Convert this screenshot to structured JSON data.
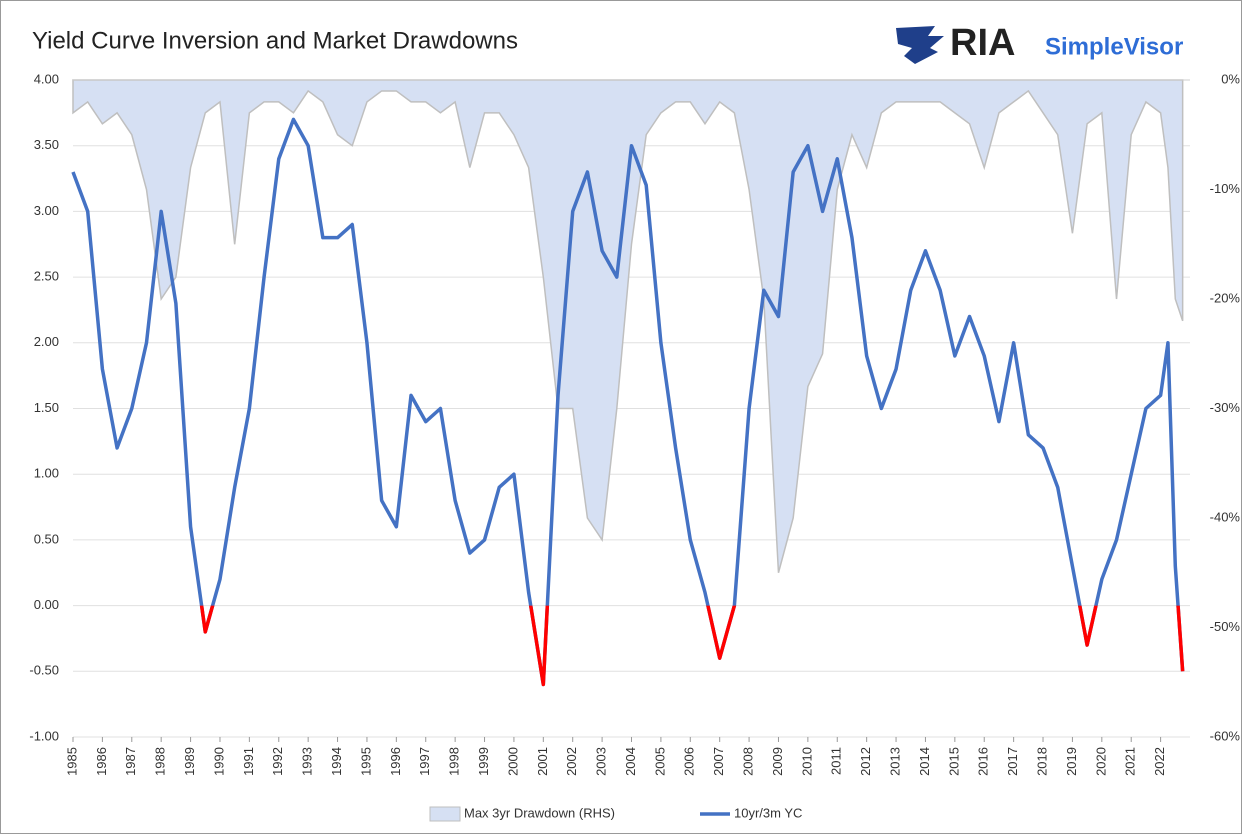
{
  "chart_data": {
    "type": "line",
    "title": "Yield Curve Inversion and Market Drawdowns",
    "logo": [
      "RIA",
      "SimpleVisor"
    ],
    "x": [
      1985.0,
      1985.5,
      1986.0,
      1986.5,
      1987.0,
      1987.5,
      1988.0,
      1988.5,
      1989.0,
      1989.5,
      1990.0,
      1990.5,
      1991.0,
      1991.5,
      1992.0,
      1992.5,
      1993.0,
      1993.5,
      1994.0,
      1994.5,
      1995.0,
      1995.5,
      1996.0,
      1996.5,
      1997.0,
      1997.5,
      1998.0,
      1998.5,
      1999.0,
      1999.5,
      2000.0,
      2000.5,
      2001.0,
      2001.5,
      2002.0,
      2002.5,
      2003.0,
      2003.5,
      2004.0,
      2004.5,
      2005.0,
      2005.5,
      2006.0,
      2006.5,
      2007.0,
      2007.5,
      2008.0,
      2008.5,
      2009.0,
      2009.5,
      2010.0,
      2010.5,
      2011.0,
      2011.5,
      2012.0,
      2012.5,
      2013.0,
      2013.5,
      2014.0,
      2014.5,
      2015.0,
      2015.5,
      2016.0,
      2016.5,
      2017.0,
      2017.5,
      2018.0,
      2018.5,
      2019.0,
      2019.5,
      2020.0,
      2020.5,
      2021.0,
      2021.5,
      2022.0,
      2022.25,
      2022.5,
      2022.75
    ],
    "series": [
      {
        "name": "Max 3yr Drawdown (RHS)",
        "axis": "y2",
        "kind": "area",
        "color": "#d6e0f3",
        "edge_color": "#bfbfbf",
        "values": [
          -3,
          -2,
          -4,
          -3,
          -5,
          -10,
          -20,
          -18,
          -8,
          -3,
          -2,
          -15,
          -3,
          -2,
          -2,
          -3,
          -1,
          -2,
          -5,
          -6,
          -2,
          -1,
          -1,
          -2,
          -2,
          -3,
          -2,
          -8,
          -3,
          -3,
          -5,
          -8,
          -18,
          -30,
          -30,
          -40,
          -42,
          -30,
          -15,
          -5,
          -3,
          -2,
          -2,
          -4,
          -2,
          -3,
          -10,
          -20,
          -45,
          -40,
          -28,
          -25,
          -10,
          -5,
          -8,
          -3,
          -2,
          -2,
          -2,
          -2,
          -3,
          -4,
          -8,
          -3,
          -2,
          -1,
          -3,
          -5,
          -14,
          -4,
          -3,
          -20,
          -5,
          -2,
          -3,
          -8,
          -20,
          -22
        ]
      },
      {
        "name": "10yr/3m YC",
        "axis": "y",
        "kind": "line",
        "color": "#4472c4",
        "negative_color": "#ff0000",
        "values": [
          3.3,
          3.0,
          1.8,
          1.2,
          1.5,
          2.0,
          3.0,
          2.3,
          0.6,
          -0.2,
          0.2,
          0.9,
          1.5,
          2.5,
          3.4,
          3.7,
          3.5,
          2.8,
          2.8,
          2.9,
          2.0,
          0.8,
          0.6,
          1.6,
          1.4,
          1.5,
          0.8,
          0.4,
          0.5,
          0.9,
          1.0,
          0.1,
          -0.6,
          1.6,
          3.0,
          3.3,
          2.7,
          2.5,
          3.5,
          3.2,
          2.0,
          1.2,
          0.5,
          0.1,
          -0.4,
          0.0,
          1.5,
          2.4,
          2.2,
          3.3,
          3.5,
          3.0,
          3.4,
          2.8,
          1.9,
          1.5,
          1.8,
          2.4,
          2.7,
          2.4,
          1.9,
          2.2,
          1.9,
          1.4,
          2.0,
          1.3,
          1.2,
          0.9,
          0.3,
          -0.3,
          0.2,
          0.5,
          1.0,
          1.5,
          1.6,
          2.0,
          0.3,
          -0.5
        ]
      }
    ],
    "xlim": [
      1985,
      2023
    ],
    "xticks": [
      1985,
      1986,
      1987,
      1988,
      1989,
      1990,
      1991,
      1992,
      1993,
      1994,
      1995,
      1996,
      1997,
      1998,
      1999,
      2000,
      2001,
      2002,
      2003,
      2004,
      2005,
      2006,
      2007,
      2008,
      2009,
      2010,
      2011,
      2012,
      2013,
      2014,
      2015,
      2016,
      2017,
      2018,
      2019,
      2020,
      2021,
      2022
    ],
    "ylim": [
      -1,
      4
    ],
    "yticks": [
      {
        "value": -1,
        "label": "-1.00"
      },
      {
        "value": -0.5,
        "label": "-0.50"
      },
      {
        "value": 0,
        "label": "0.00"
      },
      {
        "value": 0.5,
        "label": "0.50"
      },
      {
        "value": 1,
        "label": "1.00"
      },
      {
        "value": 1.5,
        "label": "1.50"
      },
      {
        "value": 2,
        "label": "2.00"
      },
      {
        "value": 2.5,
        "label": "2.50"
      },
      {
        "value": 3,
        "label": "3.00"
      },
      {
        "value": 3.5,
        "label": "3.50"
      },
      {
        "value": 4,
        "label": "4.00"
      }
    ],
    "y2lim": [
      -60,
      0
    ],
    "y2ticks": [
      {
        "value": -60,
        "label": "-60%"
      },
      {
        "value": -50,
        "label": "-50%"
      },
      {
        "value": -40,
        "label": "-40%"
      },
      {
        "value": -30,
        "label": "-30%"
      },
      {
        "value": -20,
        "label": "-20%"
      },
      {
        "value": -10,
        "label": "-10%"
      },
      {
        "value": 0,
        "label": "0%"
      }
    ],
    "grid": true,
    "legend": "bottom"
  }
}
